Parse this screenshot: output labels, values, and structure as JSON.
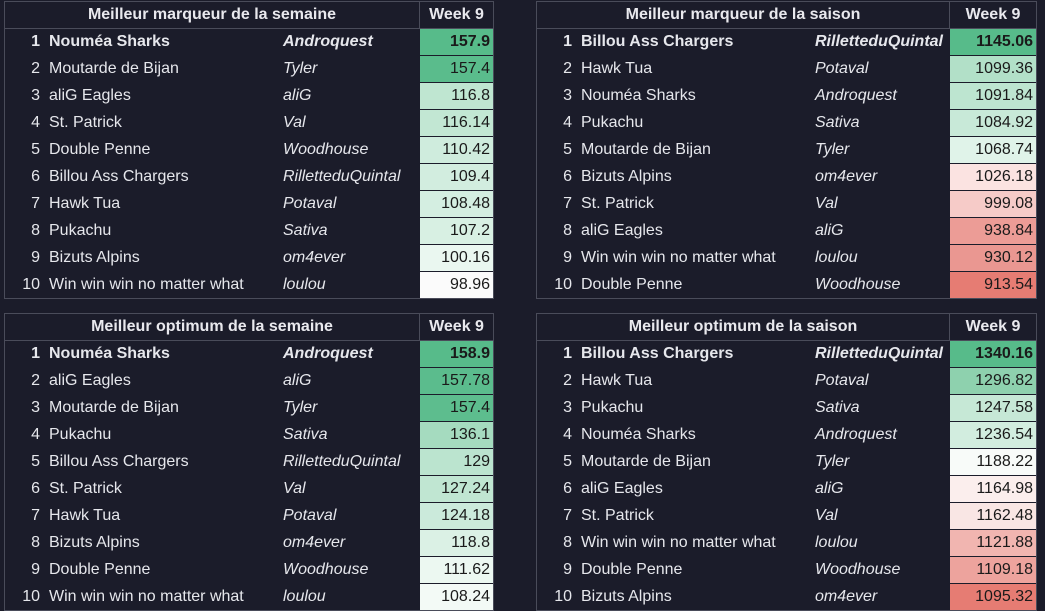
{
  "tables": [
    {
      "title": "Meilleur marqueur de la semaine",
      "week": "Week 9",
      "rows": [
        {
          "rank": "1",
          "team": "Nouméa Sharks",
          "owner": "Androquest",
          "score": "157.9",
          "color": "#57bb8a"
        },
        {
          "rank": "2",
          "team": "Moutarde de Bijan",
          "owner": "Tyler",
          "score": "157.4",
          "color": "#5abc8c"
        },
        {
          "rank": "3",
          "team": "aliG Eagles",
          "owner": "aliG",
          "score": "116.8",
          "color": "#bfe6d1"
        },
        {
          "rank": "4",
          "team": "St. Patrick",
          "owner": "Val",
          "score": "116.14",
          "color": "#c2e7d3"
        },
        {
          "rank": "5",
          "team": "Double Penne",
          "owner": "Woodhouse",
          "score": "110.42",
          "color": "#cfecdd"
        },
        {
          "rank": "6",
          "team": "Billou Ass Chargers",
          "owner": "RilletteduQuintal",
          "score": "109.4",
          "color": "#d2eddf"
        },
        {
          "rank": "7",
          "team": "Hawk Tua",
          "owner": "Potaval",
          "score": "108.48",
          "color": "#d4eee1"
        },
        {
          "rank": "8",
          "team": "Pukachu",
          "owner": "Sativa",
          "score": "107.2",
          "color": "#d8f0e3"
        },
        {
          "rank": "9",
          "team": "Bizuts Alpins",
          "owner": "om4ever",
          "score": "100.16",
          "color": "#eaf7f0"
        },
        {
          "rank": "10",
          "team": "Win win win no matter what",
          "owner": "loulou",
          "score": "98.96",
          "color": "#fbfbfb"
        }
      ]
    },
    {
      "title": "Meilleur marqueur de la saison",
      "week": "Week 9",
      "rows": [
        {
          "rank": "1",
          "team": "Billou Ass Chargers",
          "owner": "RilletteduQuintal",
          "score": "1145.06",
          "color": "#57bb8a"
        },
        {
          "rank": "2",
          "team": "Hawk Tua",
          "owner": "Potaval",
          "score": "1099.36",
          "color": "#b2e0c8"
        },
        {
          "rank": "3",
          "team": "Nouméa Sharks",
          "owner": "Androquest",
          "score": "1091.84",
          "color": "#bde5d0"
        },
        {
          "rank": "4",
          "team": "Pukachu",
          "owner": "Sativa",
          "score": "1084.92",
          "color": "#c8e9d8"
        },
        {
          "rank": "5",
          "team": "Moutarde de Bijan",
          "owner": "Tyler",
          "score": "1068.74",
          "color": "#e0f3e9"
        },
        {
          "rank": "6",
          "team": "Bizuts Alpins",
          "owner": "om4ever",
          "score": "1026.18",
          "color": "#fbe3e1"
        },
        {
          "rank": "7",
          "team": "St. Patrick",
          "owner": "Val",
          "score": "999.08",
          "color": "#f6cbc8"
        },
        {
          "rank": "8",
          "team": "aliG Eagles",
          "owner": "aliG",
          "score": "938.84",
          "color": "#ec9c96"
        },
        {
          "rank": "9",
          "team": "Win win win no matter what",
          "owner": "loulou",
          "score": "930.12",
          "color": "#ea9791"
        },
        {
          "rank": "10",
          "team": "Double Penne",
          "owner": "Woodhouse",
          "score": "913.54",
          "color": "#e67c73"
        }
      ]
    },
    {
      "title": "Meilleur optimum de la semaine",
      "week": "Week 9",
      "rows": [
        {
          "rank": "1",
          "team": "Nouméa Sharks",
          "owner": "Androquest",
          "score": "158.9",
          "color": "#57bb8a"
        },
        {
          "rank": "2",
          "team": "aliG Eagles",
          "owner": "aliG",
          "score": "157.78",
          "color": "#5bbc8d"
        },
        {
          "rank": "3",
          "team": "Moutarde de Bijan",
          "owner": "Tyler",
          "score": "157.4",
          "color": "#5dbd8e"
        },
        {
          "rank": "4",
          "team": "Pukachu",
          "owner": "Sativa",
          "score": "136.1",
          "color": "#a5dbbf"
        },
        {
          "rank": "5",
          "team": "Billou Ass Chargers",
          "owner": "RilletteduQuintal",
          "score": "129",
          "color": "#bbe4cf"
        },
        {
          "rank": "6",
          "team": "St. Patrick",
          "owner": "Val",
          "score": "127.24",
          "color": "#c0e6d2"
        },
        {
          "rank": "7",
          "team": "Hawk Tua",
          "owner": "Potaval",
          "score": "124.18",
          "color": "#cbeadb"
        },
        {
          "rank": "8",
          "team": "Bizuts Alpins",
          "owner": "om4ever",
          "score": "118.8",
          "color": "#dbf1e5"
        },
        {
          "rank": "9",
          "team": "Double Penne",
          "owner": "Woodhouse",
          "score": "111.62",
          "color": "#ecf8f1"
        },
        {
          "rank": "10",
          "team": "Win win win no matter what",
          "owner": "loulou",
          "score": "108.24",
          "color": "#f3faf6"
        }
      ]
    },
    {
      "title": "Meilleur optimum de la saison",
      "week": "Week 9",
      "rows": [
        {
          "rank": "1",
          "team": "Billou Ass Chargers",
          "owner": "RilletteduQuintal",
          "score": "1340.16",
          "color": "#57bb8a"
        },
        {
          "rank": "2",
          "team": "Hawk Tua",
          "owner": "Potaval",
          "score": "1296.82",
          "color": "#8ed1ae"
        },
        {
          "rank": "3",
          "team": "Pukachu",
          "owner": "Sativa",
          "score": "1247.58",
          "color": "#c6e8d6"
        },
        {
          "rank": "4",
          "team": "Nouméa Sharks",
          "owner": "Androquest",
          "score": "1236.54",
          "color": "#d2eddf"
        },
        {
          "rank": "5",
          "team": "Moutarde de Bijan",
          "owner": "Tyler",
          "score": "1188.22",
          "color": "#f8fbf9"
        },
        {
          "rank": "6",
          "team": "aliG Eagles",
          "owner": "aliG",
          "score": "1164.98",
          "color": "#fbeeed"
        },
        {
          "rank": "7",
          "team": "St. Patrick",
          "owner": "Val",
          "score": "1162.48",
          "color": "#f9e6e4"
        },
        {
          "rank": "8",
          "team": "Win win win no matter what",
          "owner": "loulou",
          "score": "1121.88",
          "color": "#f1b5b0"
        },
        {
          "rank": "9",
          "team": "Double Penne",
          "owner": "Woodhouse",
          "score": "1109.18",
          "color": "#eda39d"
        },
        {
          "rank": "10",
          "team": "Bizuts Alpins",
          "owner": "om4ever",
          "score": "1095.32",
          "color": "#e67c73"
        }
      ]
    }
  ]
}
